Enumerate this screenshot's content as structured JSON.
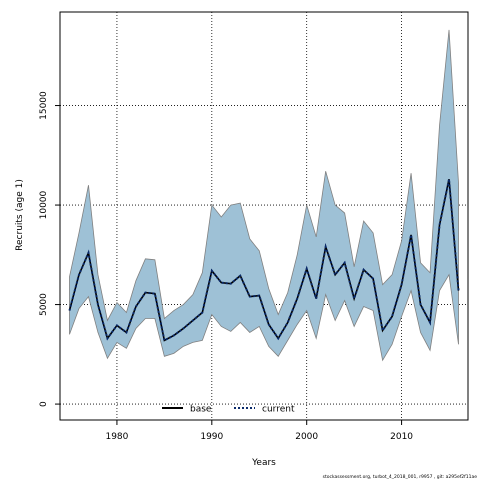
{
  "chart_data": {
    "type": "line",
    "xlabel": "Years",
    "ylabel": "Recruits (age 1)",
    "xlim": [
      1974,
      2017
    ],
    "ylim": [
      -800,
      19700
    ],
    "x_ticks": [
      1980,
      1990,
      2000,
      2010
    ],
    "y_ticks": [
      0,
      5000,
      10000,
      15000
    ],
    "x_tick_labels": [
      "1980",
      "1990",
      "2000",
      "2010"
    ],
    "y_tick_labels": [
      "0",
      "5000",
      "10000",
      "15000"
    ],
    "grid": true,
    "legend_position": "bottom-center",
    "colors": {
      "band": "#9ec1d6",
      "band_edge": "#808080",
      "base": "#000000",
      "current": "#0a2a6a"
    },
    "x": [
      1975,
      1976,
      1977,
      1978,
      1979,
      1980,
      1981,
      1982,
      1983,
      1984,
      1985,
      1986,
      1987,
      1988,
      1989,
      1990,
      1991,
      1992,
      1993,
      1994,
      1995,
      1996,
      1997,
      1998,
      1999,
      2000,
      2001,
      2002,
      2003,
      2004,
      2005,
      2006,
      2007,
      2008,
      2009,
      2010,
      2011,
      2012,
      2013,
      2014,
      2015,
      2016
    ],
    "band_upper": [
      6400,
      8600,
      11000,
      6500,
      4200,
      5100,
      4600,
      6200,
      7300,
      7250,
      4300,
      4700,
      5000,
      5500,
      6600,
      10000,
      9400,
      10000,
      10100,
      8300,
      7700,
      5800,
      4500,
      5600,
      7500,
      10000,
      8400,
      11700,
      10000,
      9600,
      6900,
      9200,
      8600,
      6000,
      6500,
      8200,
      11600,
      7100,
      6600,
      14000,
      18800,
      11100
    ],
    "band_lower": [
      3500,
      4800,
      5400,
      3600,
      2300,
      3100,
      2800,
      3800,
      4300,
      4300,
      2400,
      2550,
      2900,
      3100,
      3200,
      4500,
      3900,
      3650,
      4100,
      3600,
      3900,
      2900,
      2400,
      3200,
      4000,
      4700,
      3300,
      5500,
      4200,
      5200,
      3900,
      4900,
      4700,
      2200,
      3000,
      4400,
      5700,
      3600,
      2700,
      5700,
      6500,
      3000
    ],
    "series": [
      {
        "name": "base",
        "values": [
          4700,
          6500,
          7600,
          5000,
          3300,
          3950,
          3600,
          4900,
          5600,
          5550,
          3200,
          3450,
          3800,
          4200,
          4600,
          6700,
          6100,
          6050,
          6450,
          5400,
          5450,
          4000,
          3300,
          4100,
          5300,
          6800,
          5300,
          7900,
          6500,
          7100,
          5300,
          6750,
          6300,
          3700,
          4400,
          6000,
          8500,
          5000,
          4100,
          9000,
          11300,
          5700
        ]
      },
      {
        "name": "current",
        "values": [
          4700,
          6500,
          7600,
          5000,
          3300,
          3950,
          3600,
          4900,
          5600,
          5550,
          3200,
          3450,
          3800,
          4200,
          4600,
          6700,
          6100,
          6050,
          6450,
          5400,
          5450,
          4000,
          3300,
          4100,
          5300,
          6800,
          5300,
          7900,
          6500,
          7100,
          5300,
          6750,
          6300,
          3700,
          4400,
          6000,
          8500,
          5000,
          4100,
          9000,
          11300,
          5700
        ]
      }
    ]
  },
  "legend": {
    "base_label": "base",
    "current_label": "current"
  },
  "footer": {
    "text": "stockassessment.org, turbot_4_2018_001, r9957 , git: a295ef2f11ae"
  }
}
